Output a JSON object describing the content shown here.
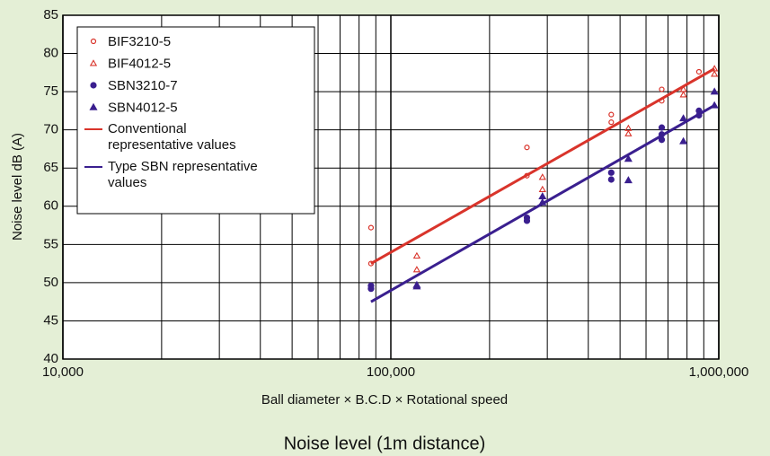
{
  "chart_data": {
    "type": "scatter",
    "title": "Noise level (1m distance)",
    "xlabel": "Ball diameter × B.C.D × Rotational speed",
    "ylabel": "Noise level dB (A)",
    "xscale": "log",
    "xlim": [
      10000,
      1000000
    ],
    "xticks": [
      {
        "value": 10000,
        "label": "10,000"
      },
      {
        "value": 100000,
        "label": "100,000"
      },
      {
        "value": 1000000,
        "label": "1,000,000"
      }
    ],
    "xminorticks": [
      20000,
      30000,
      40000,
      50000,
      60000,
      70000,
      80000,
      90000,
      200000,
      300000,
      400000,
      500000,
      600000,
      700000,
      800000,
      900000
    ],
    "ylim": [
      40,
      85
    ],
    "yticks": [
      40,
      45,
      50,
      55,
      60,
      65,
      70,
      75,
      80,
      85
    ],
    "grid": true,
    "legend": "upper left",
    "series": [
      {
        "name": "BIF3210-5",
        "color": "#d9342b",
        "marker": "circle-open",
        "x": [
          87000,
          87000,
          260000,
          260000,
          470000,
          470000,
          670000,
          670000,
          870000
        ],
        "values": [
          57.2,
          52.5,
          67.7,
          64,
          72,
          71,
          75.3,
          73.8,
          77.6
        ]
      },
      {
        "name": "BIF4012-5",
        "color": "#d9342b",
        "marker": "triangle-open",
        "x": [
          120000,
          120000,
          290000,
          290000,
          530000,
          530000,
          780000,
          780000,
          970000,
          970000
        ],
        "values": [
          53.5,
          51.7,
          63.8,
          62.2,
          70.2,
          69.5,
          75.3,
          74.6,
          78,
          77.3
        ]
      },
      {
        "name": "SBN3210-7",
        "color": "#3a1f8f",
        "marker": "circle",
        "x": [
          87000,
          87000,
          260000,
          260000,
          470000,
          470000,
          670000,
          670000,
          670000,
          870000,
          870000
        ],
        "values": [
          49.6,
          49.2,
          58.5,
          58.1,
          64.4,
          63.5,
          70.3,
          69.4,
          68.7,
          72.5,
          71.9
        ]
      },
      {
        "name": "SBN4012-5",
        "color": "#3a1f8f",
        "marker": "triangle",
        "x": [
          120000,
          120000,
          290000,
          290000,
          530000,
          530000,
          780000,
          780000,
          970000,
          970000
        ],
        "values": [
          49.7,
          49.5,
          61.3,
          60.5,
          66.2,
          63.4,
          71.5,
          68.5,
          75,
          73.2
        ]
      },
      {
        "name": "Conventional representative values",
        "color": "#d9342b",
        "marker": "line",
        "x": [
          87000,
          970000
        ],
        "values": [
          52.5,
          78
        ]
      },
      {
        "name": "Type SBN representative values",
        "color": "#3a1f8f",
        "marker": "line",
        "x": [
          87000,
          970000
        ],
        "values": [
          47.5,
          73.2
        ]
      }
    ]
  }
}
